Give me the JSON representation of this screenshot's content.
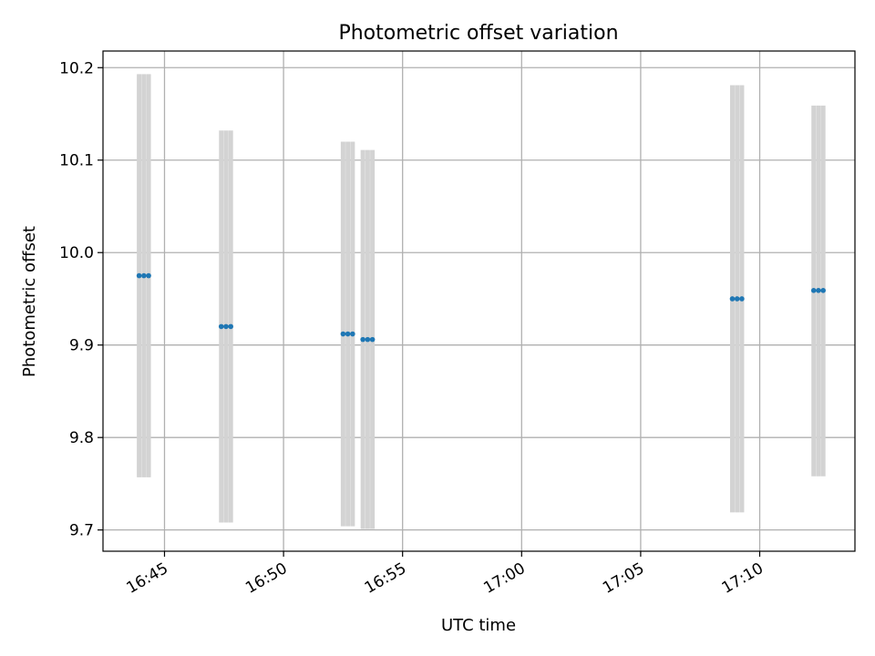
{
  "chart_data": {
    "type": "scatter",
    "title": "Photometric offset variation",
    "xlabel": "UTC time",
    "ylabel": "Photometric offset",
    "xlim": [
      "16:42:25",
      "17:14:00"
    ],
    "ylim": [
      9.677,
      10.218
    ],
    "x_ticks": [
      "16:45",
      "16:50",
      "16:55",
      "17:00",
      "17:05",
      "17:10"
    ],
    "y_ticks": [
      "9.7",
      "9.8",
      "9.9",
      "10.0",
      "10.1",
      "10.2"
    ],
    "grid": true,
    "point_color": "#1f77b4",
    "errorbar_color": "#d3d3d3",
    "series": [
      {
        "points": [
          {
            "x": "16:43:56",
            "y": 9.975,
            "yerr": [
              9.757,
              10.193
            ]
          },
          {
            "x": "16:44:08",
            "y": 9.975,
            "yerr": [
              9.757,
              10.193
            ]
          },
          {
            "x": "16:44:20",
            "y": 9.975,
            "yerr": [
              9.757,
              10.193
            ]
          },
          {
            "x": "16:47:23",
            "y": 9.92,
            "yerr": [
              9.708,
              10.132
            ]
          },
          {
            "x": "16:47:35",
            "y": 9.92,
            "yerr": [
              9.708,
              10.132
            ]
          },
          {
            "x": "16:47:47",
            "y": 9.92,
            "yerr": [
              9.708,
              10.132
            ]
          },
          {
            "x": "16:52:30",
            "y": 9.912,
            "yerr": [
              9.704,
              10.12
            ]
          },
          {
            "x": "16:52:42",
            "y": 9.912,
            "yerr": [
              9.704,
              10.12
            ]
          },
          {
            "x": "16:52:54",
            "y": 9.912,
            "yerr": [
              9.704,
              10.12
            ]
          },
          {
            "x": "16:53:20",
            "y": 9.906,
            "yerr": [
              9.701,
              10.111
            ]
          },
          {
            "x": "16:53:32",
            "y": 9.906,
            "yerr": [
              9.701,
              10.111
            ]
          },
          {
            "x": "16:53:44",
            "y": 9.906,
            "yerr": [
              9.701,
              10.111
            ]
          },
          {
            "x": "17:08:51",
            "y": 9.95,
            "yerr": [
              9.719,
              10.181
            ]
          },
          {
            "x": "17:09:03",
            "y": 9.95,
            "yerr": [
              9.719,
              10.181
            ]
          },
          {
            "x": "17:09:15",
            "y": 9.95,
            "yerr": [
              9.719,
              10.181
            ]
          },
          {
            "x": "17:12:16",
            "y": 9.959,
            "yerr": [
              9.758,
              10.159
            ]
          },
          {
            "x": "17:12:28",
            "y": 9.959,
            "yerr": [
              9.758,
              10.159
            ]
          },
          {
            "x": "17:12:40",
            "y": 9.959,
            "yerr": [
              9.758,
              10.159
            ]
          }
        ]
      }
    ]
  }
}
